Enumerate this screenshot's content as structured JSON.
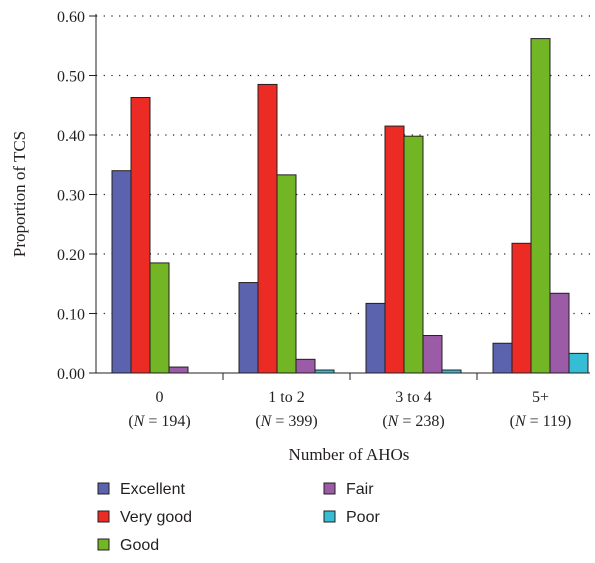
{
  "chart_data": {
    "type": "bar",
    "title": "",
    "xlabel": "Number of AHOs",
    "ylabel": "Proportion of TCS",
    "ylim": [
      0,
      0.6
    ],
    "yticks": [
      "0.00",
      "0.10",
      "0.20",
      "0.30",
      "0.40",
      "0.50",
      "0.60"
    ],
    "grid": "dotted horizontal",
    "legend_position": "bottom",
    "categories": [
      {
        "label": "0",
        "n_prefix": "(",
        "n_var": "N",
        "n_rest": " = 194)"
      },
      {
        "label": "1 to 2",
        "n_prefix": "(",
        "n_var": "N",
        "n_rest": " = 399)"
      },
      {
        "label": "3 to 4",
        "n_prefix": "(",
        "n_var": "N",
        "n_rest": " = 238)"
      },
      {
        "label": "5+",
        "n_prefix": "(",
        "n_var": "N",
        "n_rest": " = 119)"
      }
    ],
    "series": [
      {
        "name": "Excellent",
        "color": "#5b62ae",
        "values": [
          0.34,
          0.152,
          0.117,
          0.05
        ]
      },
      {
        "name": "Very good",
        "color": "#ec2b24",
        "values": [
          0.463,
          0.485,
          0.415,
          0.218
        ]
      },
      {
        "name": "Good",
        "color": "#72b626",
        "values": [
          0.185,
          0.333,
          0.398,
          0.562
        ]
      },
      {
        "name": "Fair",
        "color": "#9b5ba6",
        "values": [
          0.01,
          0.023,
          0.063,
          0.134
        ]
      },
      {
        "name": "Poor",
        "color": "#35bdd5",
        "values": [
          0.0,
          0.005,
          0.005,
          0.033
        ]
      }
    ]
  }
}
